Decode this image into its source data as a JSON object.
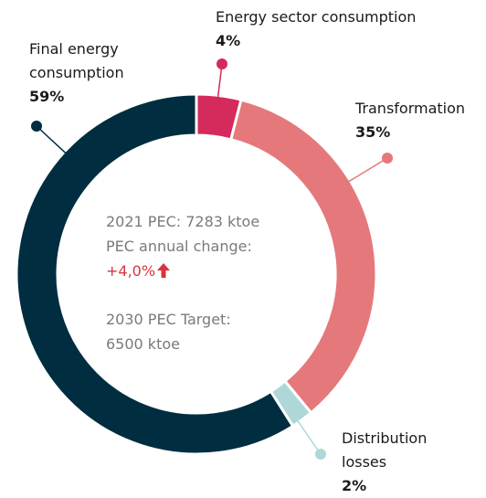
{
  "chart_data": {
    "type": "pie",
    "categories": [
      "Energy sector consumption",
      "Transformation",
      "Distribution losses",
      "Final energy consumption"
    ],
    "values": [
      4,
      35,
      2,
      59
    ],
    "value_labels": [
      "4%",
      "35%",
      "2%",
      "59%"
    ],
    "colors": [
      "#d42a5c",
      "#e5787b",
      "#aed7d8",
      "#002d40"
    ],
    "center_text": [
      "2021 PEC: 7283 ktoe",
      "PEC annual change:",
      "+4,0%",
      "2030 PEC Target:",
      "6500 ktoe"
    ]
  }
}
